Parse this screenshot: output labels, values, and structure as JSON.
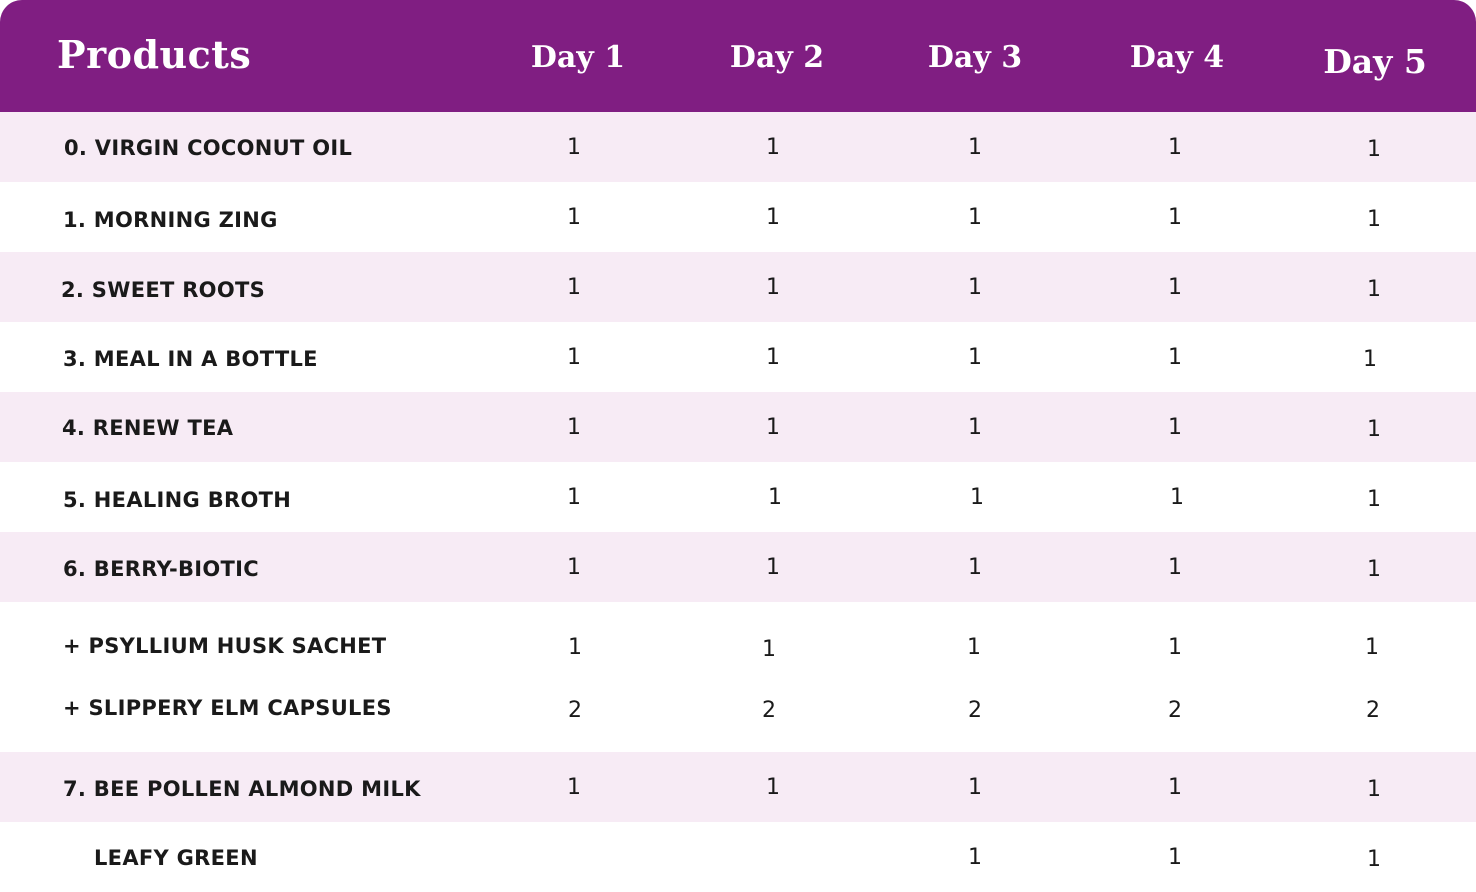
{
  "header": {
    "products": "Products",
    "days": [
      "Day 1",
      "Day 2",
      "Day 3",
      "Day 4",
      "Day 5"
    ]
  },
  "colors": {
    "header_bg": "#801e82",
    "row_shade": "#f7ebf5",
    "row_plain": "#ffffff",
    "text": "#1a1a1a"
  },
  "rows": [
    {
      "label": "0. VIRGIN COCONUT OIL",
      "values": [
        "1",
        "1",
        "1",
        "1",
        "1"
      ]
    },
    {
      "label": "1. MORNING ZING",
      "values": [
        "1",
        "1",
        "1",
        "1",
        "1"
      ]
    },
    {
      "label": "2. SWEET ROOTS",
      "values": [
        "1",
        "1",
        "1",
        "1",
        "1"
      ]
    },
    {
      "label": "3. MEAL IN A BOTTLE",
      "values": [
        "1",
        "1",
        "1",
        "1",
        "1"
      ]
    },
    {
      "label": "4. RENEW TEA",
      "values": [
        "1",
        "1",
        "1",
        "1",
        "1"
      ]
    },
    {
      "label": "5. HEALING BROTH",
      "values": [
        "1",
        "1",
        "1",
        "1",
        "1"
      ]
    },
    {
      "label": "6. BERRY-BIOTIC",
      "values": [
        "1",
        "1",
        "1",
        "1",
        "1"
      ]
    },
    {
      "label": "+ PSYLLIUM HUSK SACHET",
      "values": [
        "1",
        "1",
        "1",
        "1",
        "1"
      ]
    },
    {
      "label": "+ SLIPPERY ELM CAPSULES",
      "values": [
        "2",
        "2",
        "2",
        "2",
        "2"
      ]
    },
    {
      "label": "7. BEE POLLEN ALMOND MILK",
      "values": [
        "1",
        "1",
        "1",
        "1",
        "1"
      ]
    },
    {
      "label": "LEAFY GREEN",
      "values": [
        "",
        "",
        "1",
        "1",
        "1"
      ]
    }
  ]
}
